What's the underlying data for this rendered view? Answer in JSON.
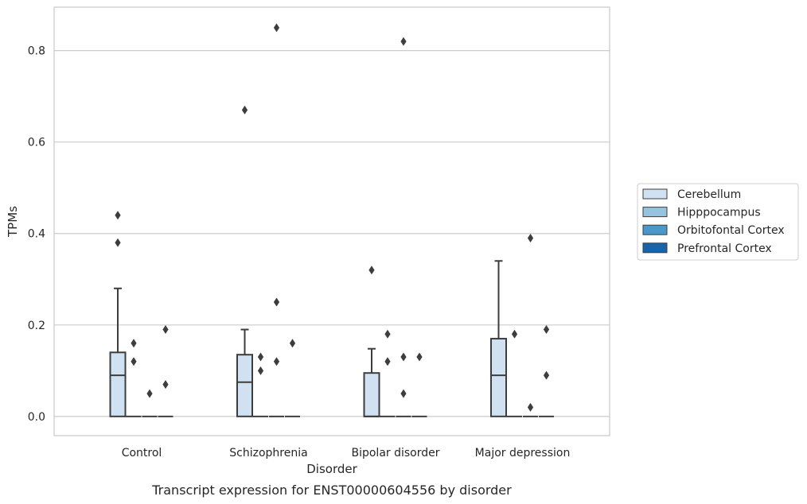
{
  "chart_data": {
    "type": "box",
    "title": "",
    "caption": "Transcript expression for ENST00000604556 by disorder",
    "xlabel": "Disorder",
    "ylabel": "TPMs",
    "ylim": [
      -0.042,
      0.895
    ],
    "yticks": [
      0.0,
      0.2,
      0.4,
      0.6,
      0.8
    ],
    "ytick_labels": [
      "0.0",
      "0.2",
      "0.4",
      "0.6",
      "0.8"
    ],
    "grid": "horizontal",
    "legend_position": "right",
    "categories": [
      "Control",
      "Schizophrenia",
      "Bipolar disorder",
      "Major depression"
    ],
    "series": [
      {
        "name": "Cerebellum",
        "color": "#d0e1f2",
        "boxes": [
          {
            "whislo": 0.0,
            "q1": 0.0,
            "median": 0.09,
            "q3": 0.14,
            "whishi": 0.28,
            "fliers": [
              0.38,
              0.44
            ]
          },
          {
            "whislo": 0.0,
            "q1": 0.0,
            "median": 0.075,
            "q3": 0.135,
            "whishi": 0.19,
            "fliers": [
              0.67
            ]
          },
          {
            "whislo": 0.0,
            "q1": 0.0,
            "median": 0.0,
            "q3": 0.095,
            "whishi": 0.148,
            "fliers": [
              0.32
            ]
          },
          {
            "whislo": 0.0,
            "q1": 0.0,
            "median": 0.09,
            "q3": 0.17,
            "whishi": 0.34,
            "fliers": []
          }
        ]
      },
      {
        "name": "Hipppocampus",
        "color": "#94c4df",
        "boxes": [
          {
            "whislo": 0.0,
            "q1": 0.0,
            "median": 0.0,
            "q3": 0.0,
            "whishi": 0.0,
            "fliers": [
              0.12,
              0.16
            ]
          },
          {
            "whislo": 0.0,
            "q1": 0.0,
            "median": 0.0,
            "q3": 0.0,
            "whishi": 0.0,
            "fliers": [
              0.1,
              0.13
            ]
          },
          {
            "whislo": 0.0,
            "q1": 0.0,
            "median": 0.0,
            "q3": 0.0,
            "whishi": 0.0,
            "fliers": [
              0.12,
              0.18
            ]
          },
          {
            "whislo": 0.0,
            "q1": 0.0,
            "median": 0.0,
            "q3": 0.0,
            "whishi": 0.0,
            "fliers": [
              0.18
            ]
          }
        ]
      },
      {
        "name": "Orbitofontal Cortex",
        "color": "#4a98c9",
        "boxes": [
          {
            "whislo": 0.0,
            "q1": 0.0,
            "median": 0.0,
            "q3": 0.0,
            "whishi": 0.0,
            "fliers": [
              0.05
            ]
          },
          {
            "whislo": 0.0,
            "q1": 0.0,
            "median": 0.0,
            "q3": 0.0,
            "whishi": 0.0,
            "fliers": [
              0.12,
              0.25,
              0.85
            ]
          },
          {
            "whislo": 0.0,
            "q1": 0.0,
            "median": 0.0,
            "q3": 0.0,
            "whishi": 0.0,
            "fliers": [
              0.05,
              0.13,
              0.82
            ]
          },
          {
            "whislo": 0.0,
            "q1": 0.0,
            "median": 0.0,
            "q3": 0.0,
            "whishi": 0.0,
            "fliers": [
              0.02,
              0.39
            ]
          }
        ]
      },
      {
        "name": "Prefrontal Cortex",
        "color": "#1764ab",
        "boxes": [
          {
            "whislo": 0.0,
            "q1": 0.0,
            "median": 0.0,
            "q3": 0.0,
            "whishi": 0.0,
            "fliers": [
              0.07,
              0.19
            ]
          },
          {
            "whislo": 0.0,
            "q1": 0.0,
            "median": 0.0,
            "q3": 0.0,
            "whishi": 0.0,
            "fliers": [
              0.16
            ]
          },
          {
            "whislo": 0.0,
            "q1": 0.0,
            "median": 0.0,
            "q3": 0.0,
            "whishi": 0.0,
            "fliers": [
              0.13
            ]
          },
          {
            "whislo": 0.0,
            "q1": 0.0,
            "median": 0.0,
            "q3": 0.0,
            "whishi": 0.0,
            "fliers": [
              0.09,
              0.19
            ]
          }
        ]
      }
    ],
    "colors": {
      "box_edge": "#3d3d3d",
      "grid": "#cccccc",
      "text": "#262626"
    }
  }
}
